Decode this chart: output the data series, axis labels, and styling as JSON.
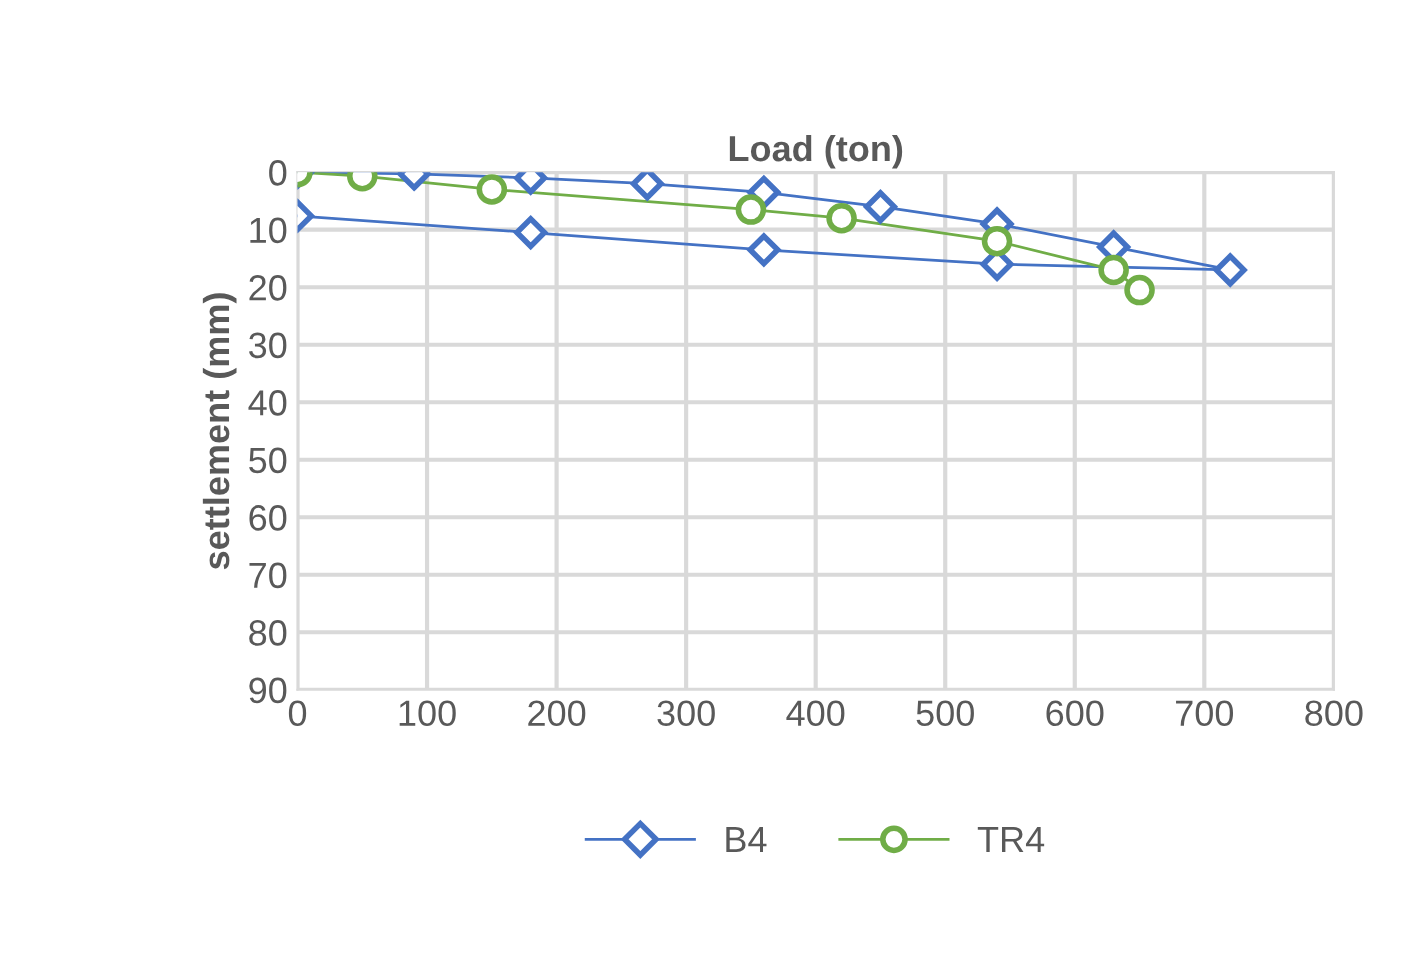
{
  "chart_data": {
    "type": "line",
    "xlabel": "Load (ton)",
    "ylabel": "settlement (mm)",
    "xlim": [
      0,
      800
    ],
    "xticks": [
      0,
      100,
      200,
      300,
      400,
      500,
      600,
      700,
      800
    ],
    "ylim": [
      90,
      0
    ],
    "yticks": [
      0,
      10,
      20,
      30,
      40,
      50,
      60,
      70,
      80,
      90
    ],
    "grid": true,
    "legend": "bottom",
    "series": [
      {
        "name": "B4",
        "color": "#4472c4",
        "marker": "diamond",
        "x": [
          0,
          90,
          180,
          270,
          360,
          450,
          540,
          630,
          720,
          540,
          360,
          180,
          0
        ],
        "values": [
          0,
          0.3,
          1,
          2,
          3.5,
          6,
          9,
          13,
          17,
          16,
          13.5,
          10.5,
          7.6
        ]
      },
      {
        "name": "TR4",
        "color": "#70ad47",
        "marker": "circle",
        "x": [
          0,
          50,
          150,
          350,
          420,
          540,
          630,
          650
        ],
        "values": [
          0,
          0.7,
          3,
          6.5,
          8,
          12,
          17,
          20.5
        ]
      }
    ]
  }
}
